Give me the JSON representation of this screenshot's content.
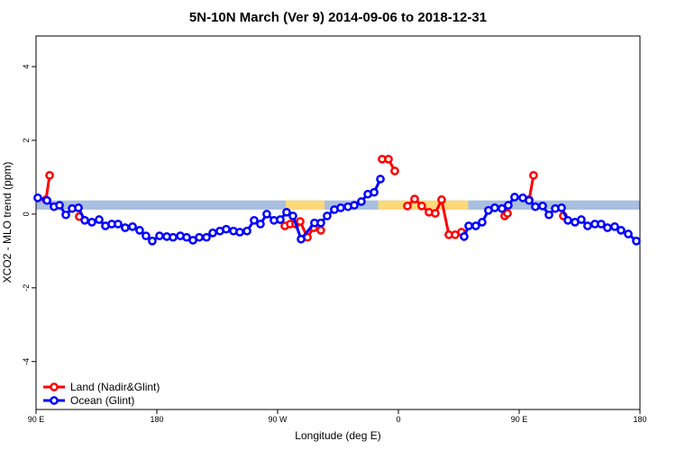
{
  "chart_data": {
    "type": "line",
    "title": "5N-10N March (Ver 9)   2014-09-06 to 2018-12-31",
    "x_label": "Longitude (deg E)",
    "y_label": "XCO2 - MLO trend (ppm)",
    "xlim": [
      90,
      540
    ],
    "ylim": [
      -5.3,
      4.83
    ],
    "xticks": [
      {
        "value": 90,
        "label": "90 E"
      },
      180,
      {
        "value": 270,
        "label": "90 W"
      },
      {
        "value": 360,
        "label": "0"
      },
      {
        "value": 450,
        "label": "90 E"
      },
      {
        "value": 540,
        "label": "180"
      }
    ],
    "yticks": [
      -4,
      -2,
      0,
      2,
      4
    ],
    "band": {
      "range": [
        0.12,
        0.37
      ],
      "color": "#a9bfdf"
    },
    "highlight_spans": {
      "color": "#fcd97a",
      "spans": [
        [
          276,
          305
        ],
        [
          345,
          412
        ]
      ]
    },
    "legend": "bottom-left",
    "series": [
      {
        "name": "Land (Nadir&Glint)",
        "color": "#ff0000",
        "x": [
          97.4,
          100.1,
          null,
          122.2,
          null,
          275.4,
          279.4,
          283.4,
          286.8,
          292.2,
          296.9,
          302.2,
          null,
          347.9,
          352.6,
          357.3,
          null,
          366.7,
          372.1,
          377.4,
          382.8,
          387.5,
          392.2,
          397.6,
          402.3,
          407.0,
          null,
          439.2,
          441.3,
          null,
          457.4,
          460.7,
          null,
          482.9
        ],
        "values": [
          0.39,
          1.05,
          null,
          -0.07,
          null,
          -0.32,
          -0.27,
          -0.27,
          -0.2,
          -0.63,
          -0.37,
          -0.44,
          null,
          1.49,
          1.49,
          1.17,
          null,
          0.22,
          0.41,
          0.22,
          0.05,
          0.02,
          0.39,
          -0.56,
          -0.56,
          -0.49,
          null,
          -0.05,
          0.02,
          null,
          0.39,
          1.05,
          null,
          -0.05
        ]
      },
      {
        "name": "Ocean (Glint)",
        "color": "#0000ff",
        "x": [
          91.3,
          98.1,
          103.4,
          107.5,
          112.2,
          116.9,
          121.6,
          126.3,
          131.6,
          137.0,
          141.7,
          146.4,
          151.1,
          156.4,
          161.9,
          167.2,
          171.9,
          176.6,
          182.0,
          187.4,
          192.1,
          197.5,
          202.2,
          206.9,
          211.6,
          217.0,
          221.7,
          227.0,
          231.7,
          237.1,
          241.8,
          247.2,
          252.5,
          257.2,
          261.9,
          267.3,
          272.0,
          276.7,
          281.4,
          287.5,
          297.5,
          302.2,
          306.9,
          312.3,
          317.0,
          322.4,
          327.1,
          332.4,
          337.2,
          341.9,
          346.6,
          null,
          409.0,
          412.4,
          417.7,
          422.4,
          427.1,
          431.8,
          437.2,
          441.9,
          446.6,
          452.7,
          457.4,
          462.1,
          467.5,
          472.2,
          476.9,
          481.6,
          486.3,
          491.6,
          496.3,
          501.0,
          506.4,
          511.1,
          515.8,
          521.2,
          525.9,
          531.3,
          537.3
        ],
        "values": [
          0.44,
          0.37,
          0.2,
          0.24,
          -0.02,
          0.15,
          0.17,
          -0.17,
          -0.22,
          -0.15,
          -0.32,
          -0.27,
          -0.27,
          -0.37,
          -0.34,
          -0.44,
          -0.59,
          -0.73,
          -0.59,
          -0.61,
          -0.63,
          -0.59,
          -0.63,
          -0.71,
          -0.63,
          -0.63,
          -0.51,
          -0.46,
          -0.41,
          -0.46,
          -0.49,
          -0.46,
          -0.17,
          -0.27,
          0.0,
          -0.17,
          -0.15,
          0.05,
          -0.05,
          -0.68,
          -0.24,
          -0.24,
          -0.05,
          0.12,
          0.17,
          0.2,
          0.24,
          0.34,
          0.54,
          0.59,
          0.95,
          null,
          -0.61,
          -0.32,
          -0.32,
          -0.22,
          0.1,
          0.17,
          0.15,
          0.24,
          0.46,
          0.44,
          0.37,
          0.2,
          0.22,
          -0.02,
          0.15,
          0.17,
          -0.17,
          -0.22,
          -0.15,
          -0.32,
          -0.27,
          -0.27,
          -0.37,
          -0.34,
          -0.44,
          -0.54,
          -0.73
        ]
      }
    ]
  }
}
